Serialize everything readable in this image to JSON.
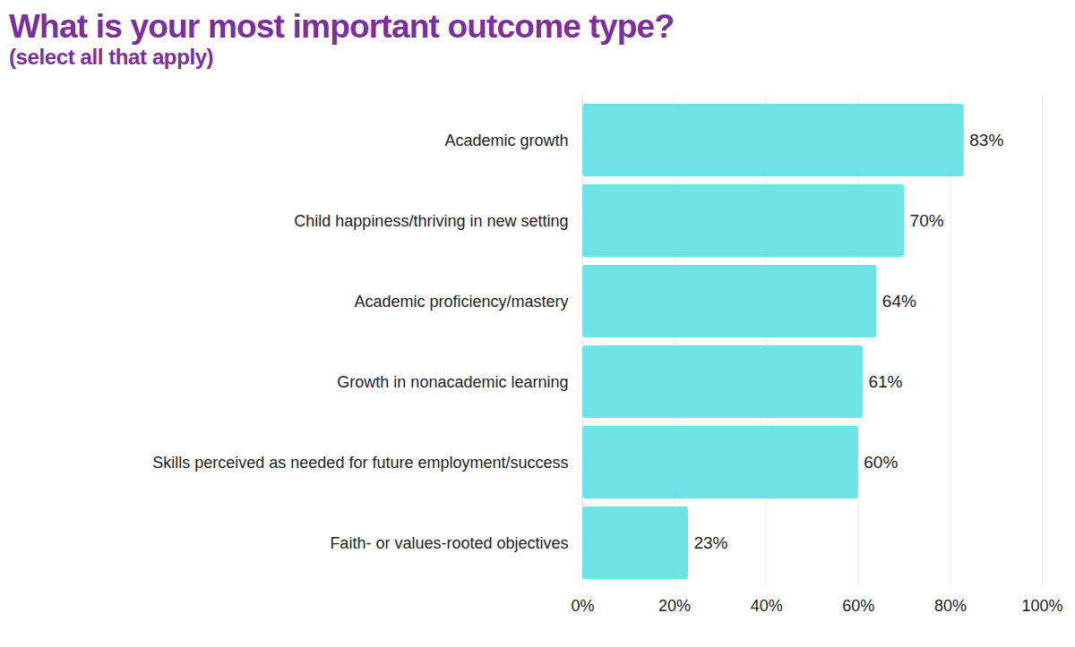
{
  "chart_data": {
    "type": "bar",
    "orientation": "horizontal",
    "title": "What is your most important outcome type?",
    "subtitle": "(select all that apply)",
    "categories": [
      "Academic growth",
      "Child happiness/thriving in new setting",
      "Academic proficiency/mastery",
      "Growth in nonacademic learning",
      "Skills perceived as needed for future employment/success",
      "Faith- or values-rooted objectives"
    ],
    "values": [
      83,
      70,
      64,
      61,
      60,
      23
    ],
    "value_labels": [
      "83%",
      "70%",
      "64%",
      "61%",
      "60%",
      "23%"
    ],
    "data_labels": true,
    "color": "#6ee3e5",
    "xlim": [
      0,
      100
    ],
    "xticks": [
      {
        "value": 0,
        "label": "0%"
      },
      {
        "value": 20,
        "label": "20%"
      },
      {
        "value": 40,
        "label": "40%"
      },
      {
        "value": 60,
        "label": "60%"
      },
      {
        "value": 80,
        "label": "80%"
      },
      {
        "value": 100,
        "label": "100%"
      }
    ],
    "grid": true
  }
}
